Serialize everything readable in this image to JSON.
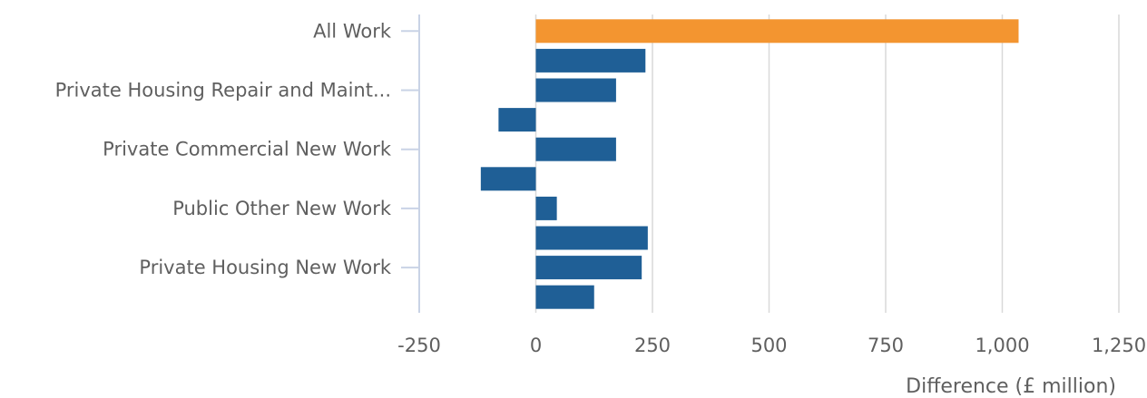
{
  "chart_data": {
    "type": "bar",
    "orientation": "horizontal",
    "xlabel": "Difference (£ million)",
    "ylabel": "",
    "xlim": [
      -250,
      1250
    ],
    "xticks": [
      -250,
      0,
      250,
      500,
      750,
      1000,
      1250
    ],
    "xtick_labels": [
      "-250",
      "0",
      "250",
      "500",
      "750",
      "1,000",
      "1,250"
    ],
    "grid": true,
    "colors": {
      "highlight": "#f39530",
      "default": "#1f5f96",
      "grid": "#d9d9d9",
      "axis": "#c9d3e6"
    },
    "category_labels": [
      {
        "row": 0,
        "text": "All Work"
      },
      {
        "row": 2,
        "text": "Private Housing Repair and Maint..."
      },
      {
        "row": 4,
        "text": "Private Commercial New Work"
      },
      {
        "row": 6,
        "text": "Public Other New Work"
      },
      {
        "row": 8,
        "text": "Private Housing New Work"
      }
    ],
    "values": [
      1035,
      235,
      172,
      -80,
      172,
      -118,
      45,
      240,
      227,
      125
    ],
    "highlight_index": 0
  }
}
